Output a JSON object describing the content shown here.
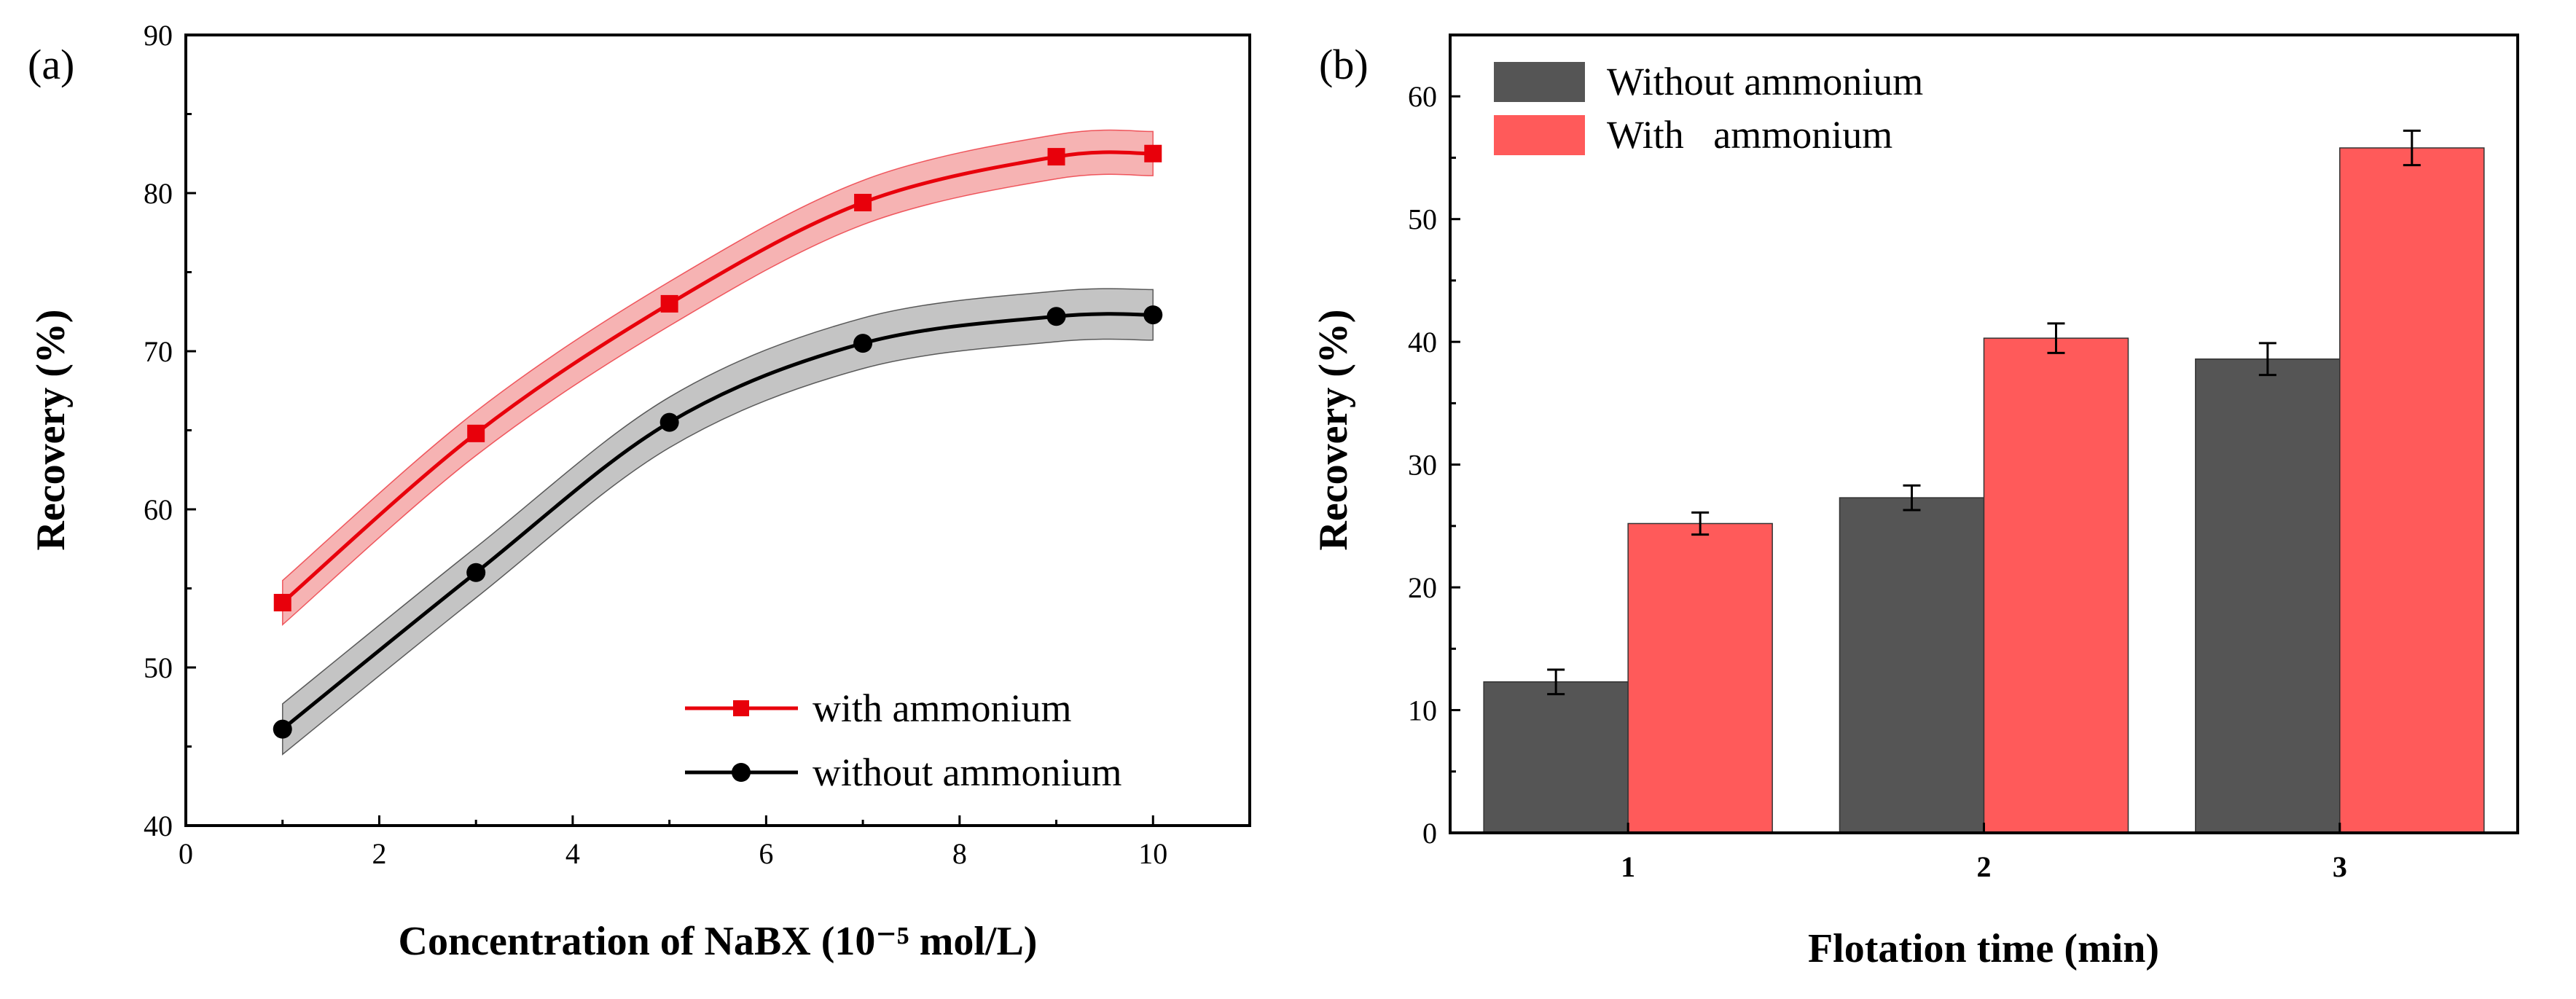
{
  "chart_data": [
    {
      "panel_label": "(a)",
      "type": "line",
      "xlabel": "Concentration of NaBX (10⁻⁵ mol/L)",
      "ylabel": "Recovery (%)",
      "xlim": [
        0,
        11
      ],
      "ylim": [
        40,
        90
      ],
      "xticks": [
        "0",
        "2",
        "4",
        "6",
        "8",
        "10"
      ],
      "yticks": [
        "40",
        "50",
        "60",
        "70",
        "80",
        "90"
      ],
      "legend_position": "bottom-right",
      "series": [
        {
          "name": "with ammonium",
          "color": "#e8000b",
          "band_color": "#f6b3b3",
          "marker": "square",
          "x": [
            1,
            3,
            5,
            7,
            9,
            10
          ],
          "y": [
            54.1,
            64.8,
            73.0,
            79.4,
            82.3,
            82.5
          ],
          "band_halfwidth": 1.4
        },
        {
          "name": "without ammonium",
          "color": "#000000",
          "band_color": "#c4c4c4",
          "marker": "circle",
          "x": [
            1,
            3,
            5,
            7,
            9,
            10
          ],
          "y": [
            46.1,
            56.0,
            65.5,
            70.5,
            72.2,
            72.3
          ],
          "band_halfwidth": 1.6
        }
      ]
    },
    {
      "panel_label": "(b)",
      "type": "bar",
      "xlabel": "Flotation time (min)",
      "ylabel": "Recovery (%)",
      "categories": [
        "1",
        "2",
        "3"
      ],
      "ylim": [
        0,
        65
      ],
      "yticks": [
        "0",
        "10",
        "20",
        "30",
        "40",
        "50",
        "60"
      ],
      "legend_position": "top-left",
      "series": [
        {
          "name": "Without ammonium",
          "color": "#555555",
          "values": [
            12.3,
            27.3,
            38.6
          ],
          "errors": [
            1.0,
            1.0,
            1.3
          ]
        },
        {
          "name": "With   ammonium",
          "color": "#ff5a5a",
          "values": [
            25.2,
            40.3,
            55.8
          ],
          "errors": [
            0.9,
            1.2,
            1.4
          ]
        }
      ]
    }
  ]
}
